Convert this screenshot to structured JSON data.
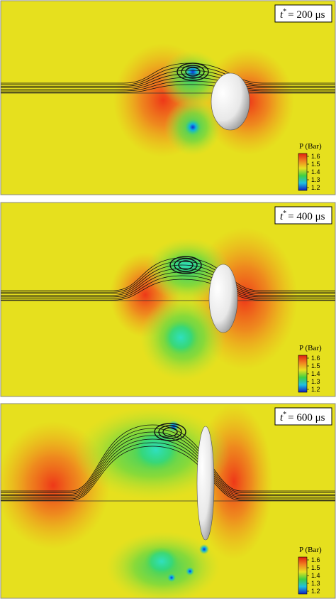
{
  "panels": [
    {
      "label": {
        "symbol": "t",
        "superscript": "*",
        "text": "= 200 μs"
      },
      "colorbar": {
        "title": "P (Bar)",
        "ticks": [
          1.6,
          1.5,
          1.4,
          1.3,
          1.2
        ]
      }
    },
    {
      "label": {
        "symbol": "t",
        "superscript": "*",
        "text": "= 400 μs"
      },
      "colorbar": {
        "title": "P (Bar)",
        "ticks": [
          1.6,
          1.5,
          1.4,
          1.3,
          1.2
        ]
      }
    },
    {
      "label": {
        "symbol": "t",
        "superscript": "*",
        "text": "= 600 μs"
      },
      "colorbar": {
        "title": "P (Bar)",
        "ticks": [
          1.6,
          1.5,
          1.4,
          1.3,
          1.2
        ]
      }
    }
  ]
}
